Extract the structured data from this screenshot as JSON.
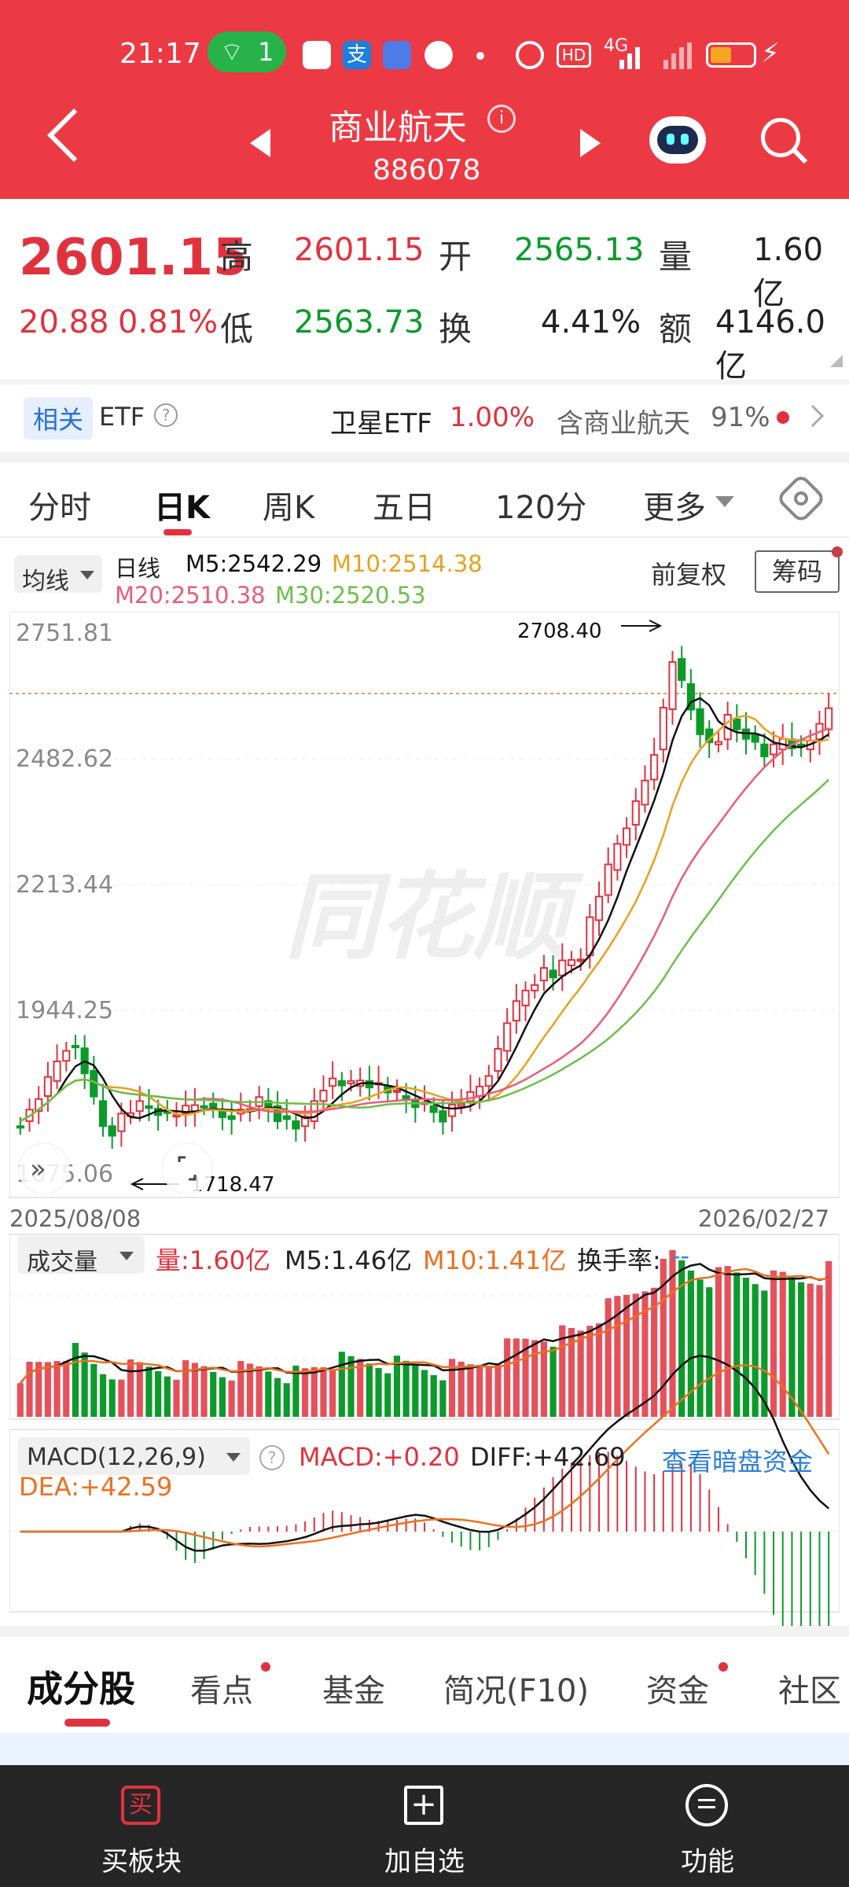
{
  "status_bar": {
    "time": "21:17",
    "wifi_count": "1",
    "hd_badge": "HD",
    "network": "4G"
  },
  "header": {
    "title": "商业航天",
    "code": "886078"
  },
  "quote": {
    "price": "2601.15",
    "change": "20.88",
    "change_pct": "0.81%",
    "high_label": "高",
    "high": "2601.15",
    "open_label": "开",
    "open": "2565.13",
    "volume_label": "量",
    "volume": "1.60亿",
    "low_label": "低",
    "low": "2563.73",
    "turnover_label": "换",
    "turnover": "4.41%",
    "amount_label": "额",
    "amount": "4146.0亿"
  },
  "related": {
    "badge": "相关",
    "etf_label": "ETF",
    "etf_name": "卫星ETF",
    "etf_change": "1.00%",
    "contains_text": "含商业航天",
    "contains_pct": "91%"
  },
  "period_tabs": [
    "分时",
    "日K",
    "周K",
    "五日",
    "120分",
    "更多"
  ],
  "active_tab": "日K",
  "ma_bar": {
    "selector": "均线",
    "period": "日线",
    "m5": "M5:2542.29",
    "m10": "M10:2514.38",
    "m20": "M20:2510.38",
    "m30": "M30:2520.53",
    "adjust": "前复权",
    "chips_button": "筹码"
  },
  "kline": {
    "y_labels": [
      "2751.81",
      "2482.62",
      "2213.44",
      "1944.25",
      "1675.06"
    ],
    "max_label": "2708.40",
    "min_label": "1718.47",
    "start_date": "2025/08/08",
    "end_date": "2026/02/27"
  },
  "volume_bar": {
    "selector": "成交量",
    "vol": "量:1.60亿",
    "m5": "M5:1.46亿",
    "m10": "M10:1.41亿",
    "turnover": "换手率:",
    "turnover_val": "--"
  },
  "macd_bar": {
    "selector": "MACD(12,26,9)",
    "macd": "MACD:+0.20",
    "diff": "DIFF:+42.69",
    "dea": "DEA:+42.59",
    "link": "查看暗盘资金"
  },
  "bottom_tabs": [
    "成分股",
    "看点",
    "基金",
    "简况(F10)",
    "资金",
    "社区"
  ],
  "bottom_nav": {
    "buy": "买板块",
    "buy_icon_char": "买",
    "add": "加自选",
    "func": "功能"
  },
  "colors": {
    "header_red": "#ec3a44",
    "up_red": "#e0323e",
    "down_green": "#0c9a2b",
    "ma5": "#111111",
    "ma10": "#e8a020",
    "ma20": "#ea5c79",
    "ma30": "#6cbf4a"
  }
}
